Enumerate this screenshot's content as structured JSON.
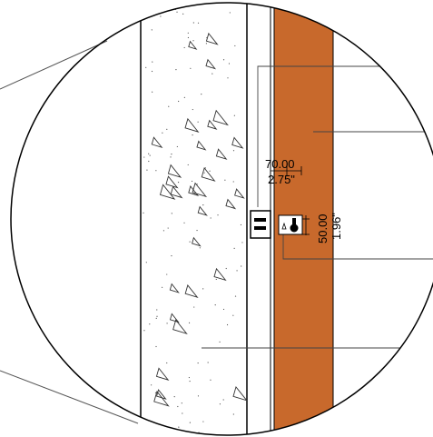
{
  "dimensions": {
    "width_mm": "70.00",
    "width_in": "2.75\"",
    "height_mm": "50.00",
    "height_in": "1.96\""
  }
}
